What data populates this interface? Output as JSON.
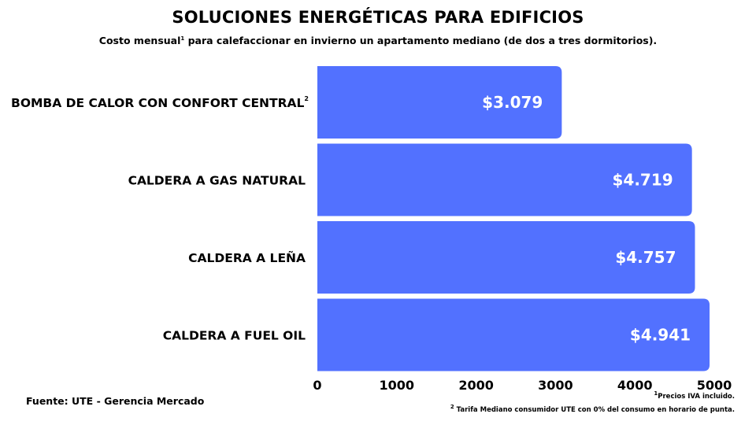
{
  "chart_data": {
    "type": "bar",
    "orientation": "horizontal",
    "title": "SOLUCIONES ENERGÉTICAS PARA EDIFICIOS",
    "subtitle_before": "Costo mensual",
    "subtitle_sup": "1",
    "subtitle_after": " para calefaccionar en invierno un apartamento mediano (de dos a tres dormitorios).",
    "categories": [
      "BOMBA DE CALOR CON CONFORT CENTRAL",
      "CALDERA A GAS NATURAL",
      "CALDERA A LEÑA",
      "CALDERA A FUEL OIL"
    ],
    "category_sups": [
      "2",
      "",
      "",
      ""
    ],
    "values": [
      3079,
      4719,
      4757,
      4941
    ],
    "data_labels": [
      "$3.079",
      "$4.719",
      "$4.757",
      "$4.941"
    ],
    "xlim": [
      0,
      5000
    ],
    "x_ticks": [
      0,
      1000,
      2000,
      3000,
      4000,
      5000
    ],
    "grid": false,
    "bar_color": "#5271FF"
  },
  "source": "Fuente: UTE - Gerencia Mercado",
  "footnotes": [
    {
      "mark": "1",
      "text": "Precios IVA incluido."
    },
    {
      "mark": "2",
      "text": "Tarifa Mediano consumidor  UTE con 0% del consumo en horario de punta."
    }
  ]
}
